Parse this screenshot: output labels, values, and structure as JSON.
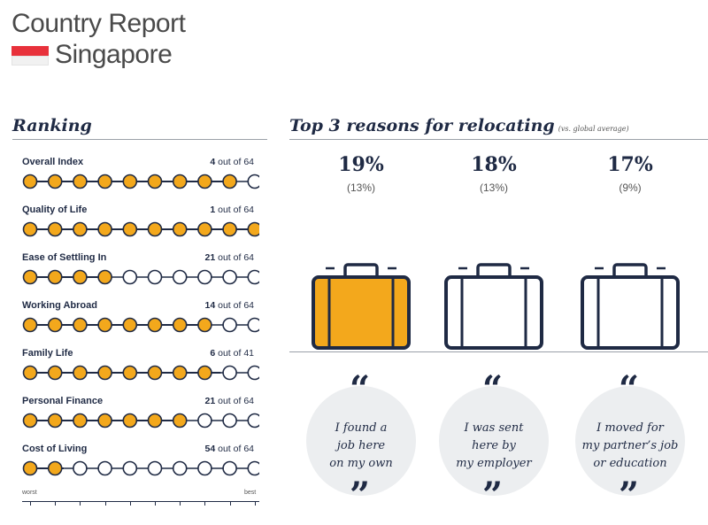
{
  "header": {
    "title": "Country Report",
    "country": "Singapore",
    "flag_colors": {
      "red": "#e8313b",
      "white": "#f1f1f1"
    }
  },
  "ranking": {
    "title": "Ranking",
    "accent": "#f3a81c",
    "items": [
      {
        "label": "Overall Index",
        "rank": "4",
        "total": "out of 64",
        "filled_fraction": 0.9
      },
      {
        "label": "Quality of Life",
        "rank": "1",
        "total": "out of 64",
        "filled_fraction": 1.0
      },
      {
        "label": "Ease of Settling In",
        "rank": "21",
        "total": "out of 64",
        "filled_fraction": 0.35
      },
      {
        "label": "Working Abroad",
        "rank": "14",
        "total": "out of 64",
        "filled_fraction": 0.8
      },
      {
        "label": "Family Life",
        "rank": "6",
        "total": "out of 41",
        "filled_fraction": 0.85
      },
      {
        "label": "Personal Finance",
        "rank": "21",
        "total": "out of 64",
        "filled_fraction": 0.7
      },
      {
        "label": "Cost of Living",
        "rank": "54",
        "total": "out of 64",
        "filled_fraction": 0.15
      }
    ],
    "scale_worst": "worst",
    "scale_best": "best"
  },
  "reasons": {
    "title": "Top 3 reasons for relocating",
    "note": "(vs. global average)",
    "items": [
      {
        "pct": "19%",
        "global": "(13%)",
        "lines": [
          "I found a",
          "job here",
          "on my own"
        ],
        "highlight": true
      },
      {
        "pct": "18%",
        "global": "(13%)",
        "lines": [
          "I was sent",
          "here by",
          "my employer"
        ],
        "highlight": false
      },
      {
        "pct": "17%",
        "global": "(9%)",
        "lines": [
          "I moved for",
          "my partner’s job",
          "or education"
        ],
        "highlight": false
      }
    ],
    "open_quote": "“",
    "close_quote": "”"
  }
}
